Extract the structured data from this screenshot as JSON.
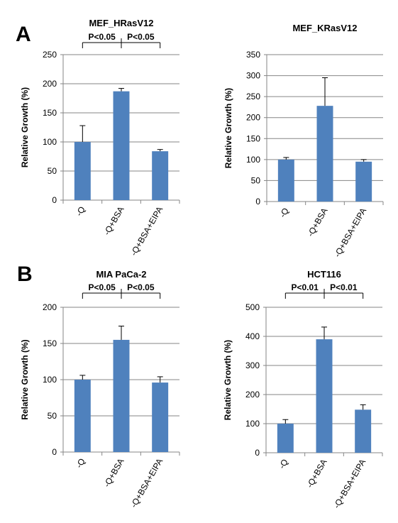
{
  "panels": [
    {
      "label": "A"
    },
    {
      "label": "B"
    }
  ],
  "colors": {
    "bar": "#4f81bd",
    "axis": "#868686",
    "grid": "#868686",
    "text": "#000000"
  },
  "chart_data": [
    {
      "type": "bar",
      "title": "MEF_HRasV12",
      "ylabel": "Relative Growth (%)",
      "xlabel": "",
      "categories": [
        "-Q",
        "-Q+BSA",
        "-Q+BSA+EIPA"
      ],
      "values": [
        100,
        187,
        84
      ],
      "errors": [
        28,
        5,
        3
      ],
      "ylim": [
        0,
        250
      ],
      "yticks": [
        0,
        50,
        100,
        150,
        200,
        250
      ],
      "grid": true,
      "significance": [
        {
          "from": 0,
          "to": 1,
          "label": "P<0.05"
        },
        {
          "from": 1,
          "to": 2,
          "label": "P<0.05"
        }
      ]
    },
    {
      "type": "bar",
      "title": "MEF_KRasV12",
      "ylabel": "Relative Growth  (%)",
      "xlabel": "",
      "categories": [
        "-Q",
        "-Q+BSA",
        "-Q+BSA+EIPA"
      ],
      "values": [
        100,
        228,
        95
      ],
      "errors": [
        5,
        67,
        5
      ],
      "ylim": [
        0,
        350
      ],
      "yticks": [
        0,
        50,
        100,
        150,
        200,
        250,
        300,
        350
      ],
      "grid": true,
      "significance": []
    },
    {
      "type": "bar",
      "title": "MIA PaCa-2",
      "ylabel": "Relative Growth (%)",
      "xlabel": "",
      "categories": [
        "-Q",
        "-Q+BSA",
        "-Q+BSA+EIPA"
      ],
      "values": [
        100,
        155,
        96
      ],
      "errors": [
        6,
        19,
        8
      ],
      "ylim": [
        0,
        200
      ],
      "yticks": [
        0,
        50,
        100,
        150,
        200
      ],
      "grid": true,
      "significance": [
        {
          "from": 0,
          "to": 1,
          "label": "P<0.05"
        },
        {
          "from": 1,
          "to": 2,
          "label": "P<0.05"
        }
      ]
    },
    {
      "type": "bar",
      "title": "HCT116",
      "ylabel": "Relative Growth (%)",
      "xlabel": "",
      "categories": [
        "-Q",
        "-Q+BSA",
        "-Q+BSA+EIPA"
      ],
      "values": [
        100,
        390,
        148
      ],
      "errors": [
        14,
        42,
        17
      ],
      "ylim": [
        0,
        500
      ],
      "yticks": [
        0,
        100,
        200,
        300,
        400,
        500
      ],
      "grid": true,
      "significance": [
        {
          "from": 0,
          "to": 1,
          "label": "P<0.01"
        },
        {
          "from": 1,
          "to": 2,
          "label": "P<0.01"
        }
      ]
    }
  ]
}
